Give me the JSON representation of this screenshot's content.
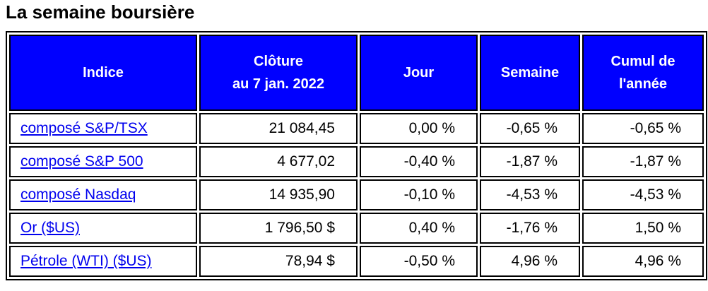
{
  "title": "La semaine boursière",
  "table": {
    "header": [
      [
        "Indice"
      ],
      [
        "Clôture",
        "au 7 jan. 2022"
      ],
      [
        "Jour"
      ],
      [
        "Semaine"
      ],
      [
        "Cumul de",
        "l'année"
      ]
    ],
    "rows": [
      [
        "composé S&P/TSX",
        "21 084,45",
        "0,00 %",
        "-0,65 %",
        "-0,65 %"
      ],
      [
        "composé S&P 500",
        "4 677,02",
        "-0,40 %",
        "-1,87 %",
        "-1,87 %"
      ],
      [
        "composé Nasdaq",
        "14 935,90",
        "-0,10 %",
        "-4,53 %",
        "-4,53 %"
      ],
      [
        "Or ($US)",
        "1 796,50 $",
        "0,40 %",
        "-1,76 %",
        "1,50 %"
      ],
      [
        "Pétrole (WTI) ($US)",
        "78,94 $",
        "-0,50 %",
        "4,96 %",
        "4,96 %"
      ]
    ]
  }
}
